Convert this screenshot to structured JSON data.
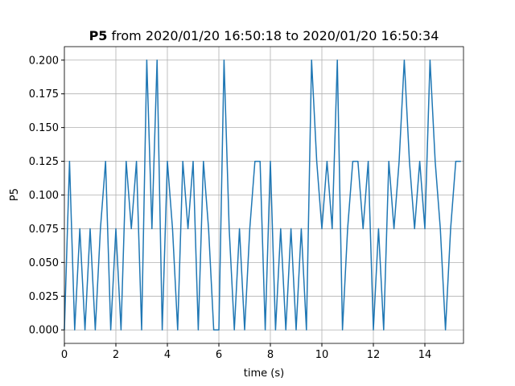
{
  "chart_data": {
    "type": "line",
    "title": {
      "bold": "P5",
      "rest": "from 2020/01/20 16:50:18 to 2020/01/20 16:50:34"
    },
    "xlabel": "time (s)",
    "ylabel": "P5",
    "x": [
      0.0,
      0.2,
      0.4,
      0.6,
      0.8,
      1.0,
      1.2,
      1.4,
      1.6,
      1.8,
      2.0,
      2.2,
      2.4,
      2.6,
      2.8,
      3.0,
      3.2,
      3.4,
      3.6,
      3.8,
      4.0,
      4.2,
      4.4,
      4.6,
      4.8,
      5.0,
      5.2,
      5.4,
      5.6,
      5.8,
      6.0,
      6.2,
      6.4,
      6.6,
      6.8,
      7.0,
      7.2,
      7.4,
      7.6,
      7.8,
      8.0,
      8.2,
      8.4,
      8.6,
      8.8,
      9.0,
      9.2,
      9.4,
      9.6,
      9.8,
      10.0,
      10.2,
      10.4,
      10.6,
      10.8,
      11.0,
      11.2,
      11.4,
      11.6,
      11.8,
      12.0,
      12.2,
      12.4,
      12.6,
      12.8,
      13.0,
      13.2,
      13.4,
      13.6,
      13.8,
      14.0,
      14.2,
      14.4,
      14.6,
      14.8,
      15.0,
      15.2,
      15.4
    ],
    "series": [
      {
        "name": "P5",
        "color": "#1f77b4",
        "values": [
          0,
          0.125,
          0,
          0.075,
          0,
          0.075,
          0,
          0.075,
          0.125,
          0,
          0.075,
          0,
          0.125,
          0.075,
          0.125,
          0,
          0.2,
          0.075,
          0.2,
          0,
          0.125,
          0.075,
          0,
          0.125,
          0.075,
          0.125,
          0,
          0.125,
          0.075,
          0,
          0,
          0.2,
          0.075,
          0,
          0.075,
          0,
          0.075,
          0.125,
          0.125,
          0,
          0.125,
          0,
          0.075,
          0,
          0.075,
          0,
          0.075,
          0,
          0.2,
          0.125,
          0.075,
          0.125,
          0.075,
          0.2,
          0,
          0.075,
          0.125,
          0.125,
          0.075,
          0.125,
          0,
          0.075,
          0,
          0.125,
          0.075,
          0.125,
          0.2,
          0.125,
          0.075,
          0.125,
          0.075,
          0.2,
          0.125,
          0.075,
          0,
          0.075,
          0.125,
          0.125
        ]
      }
    ],
    "xlim": [
      0,
      15.5
    ],
    "ylim": [
      -0.01,
      0.21
    ],
    "xticks": [
      0,
      2,
      4,
      6,
      8,
      10,
      12,
      14
    ],
    "yticks": [
      {
        "value": 0,
        "label": "0.000"
      },
      {
        "value": 0.025,
        "label": "0.025"
      },
      {
        "value": 0.05,
        "label": "0.050"
      },
      {
        "value": 0.075,
        "label": "0.075"
      },
      {
        "value": 0.1,
        "label": "0.100"
      },
      {
        "value": 0.125,
        "label": "0.125"
      },
      {
        "value": 0.15,
        "label": "0.150"
      },
      {
        "value": 0.175,
        "label": "0.175"
      },
      {
        "value": 0.2,
        "label": "0.200"
      }
    ],
    "grid": true
  }
}
